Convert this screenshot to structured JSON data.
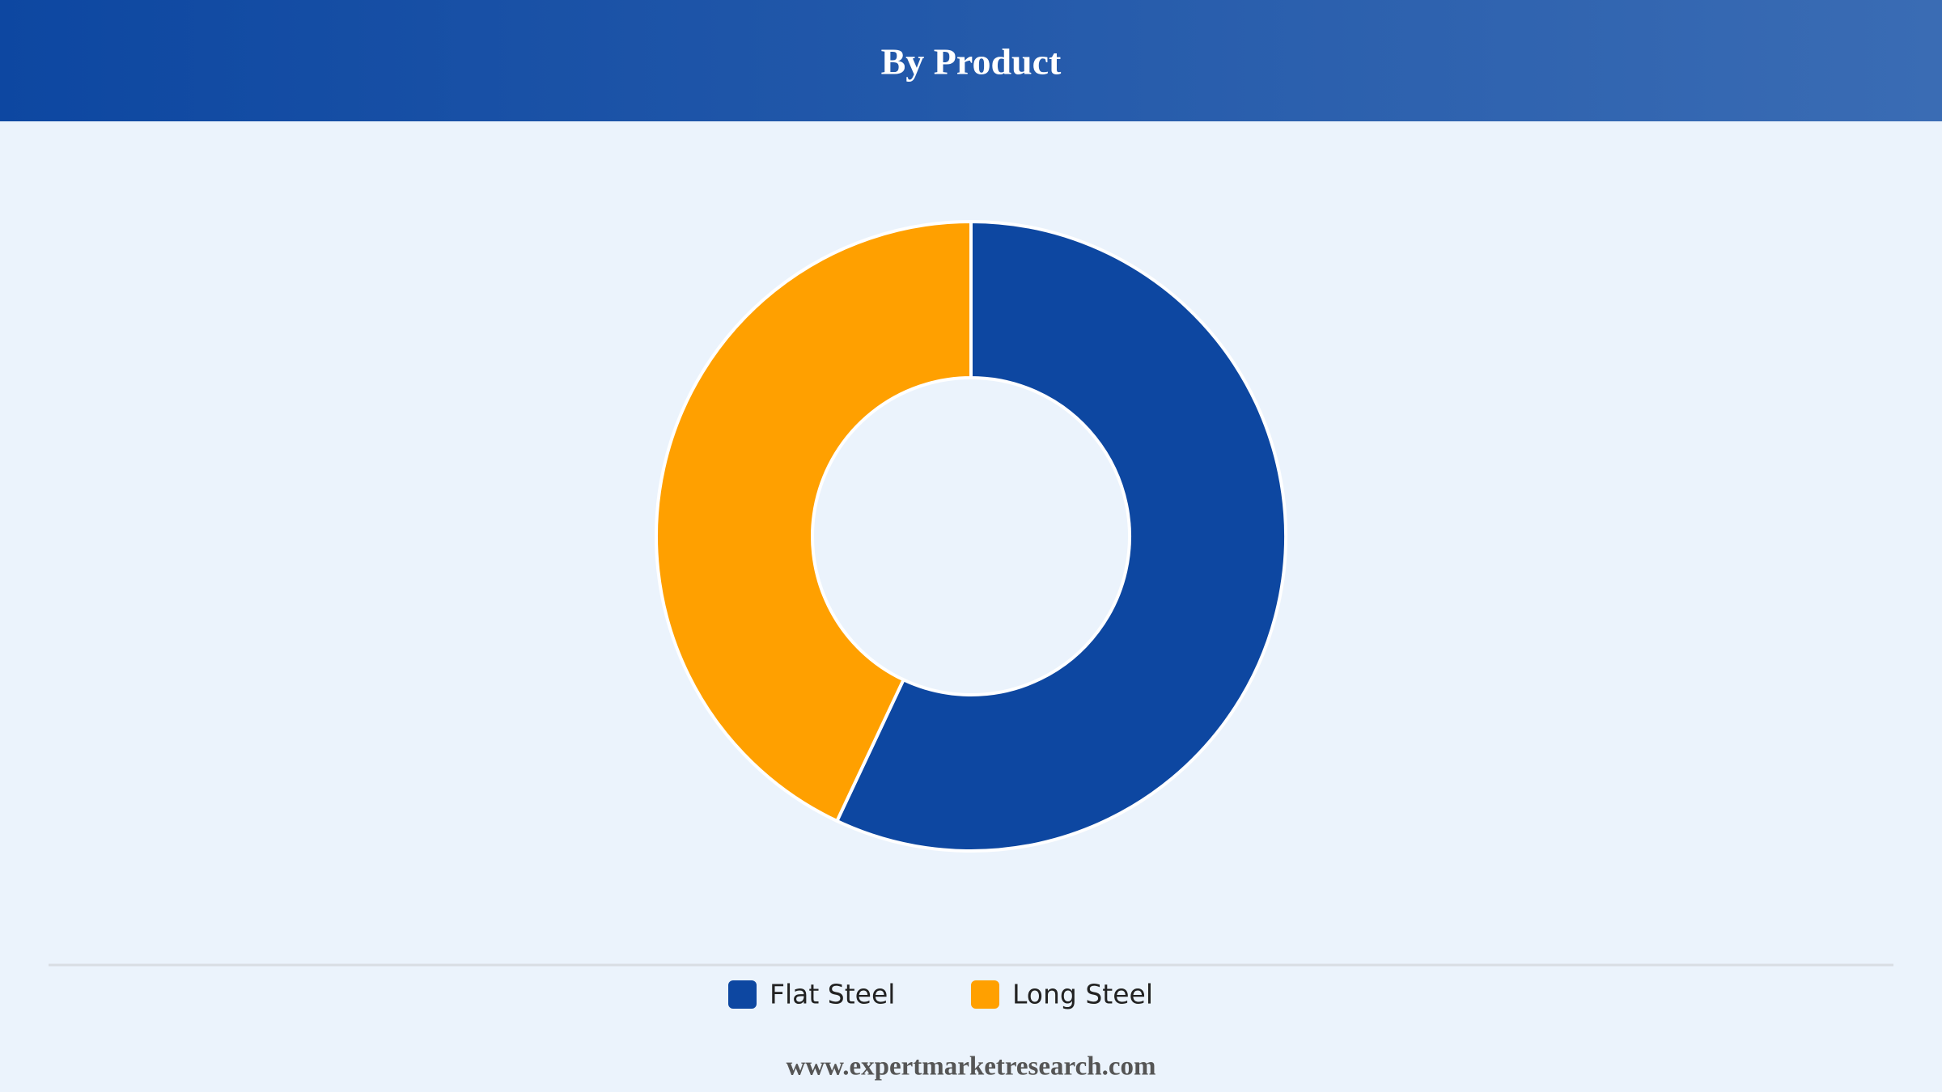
{
  "chart_data": {
    "type": "pie",
    "donut": true,
    "title": "By Product",
    "categories": [
      "Flat Steel",
      "Long Steel"
    ],
    "values": [
      57,
      43
    ],
    "colors": [
      "#0d47a1",
      "#ffa000"
    ],
    "legend": "bottom"
  },
  "footer": "www.expertmarketresearch.com"
}
